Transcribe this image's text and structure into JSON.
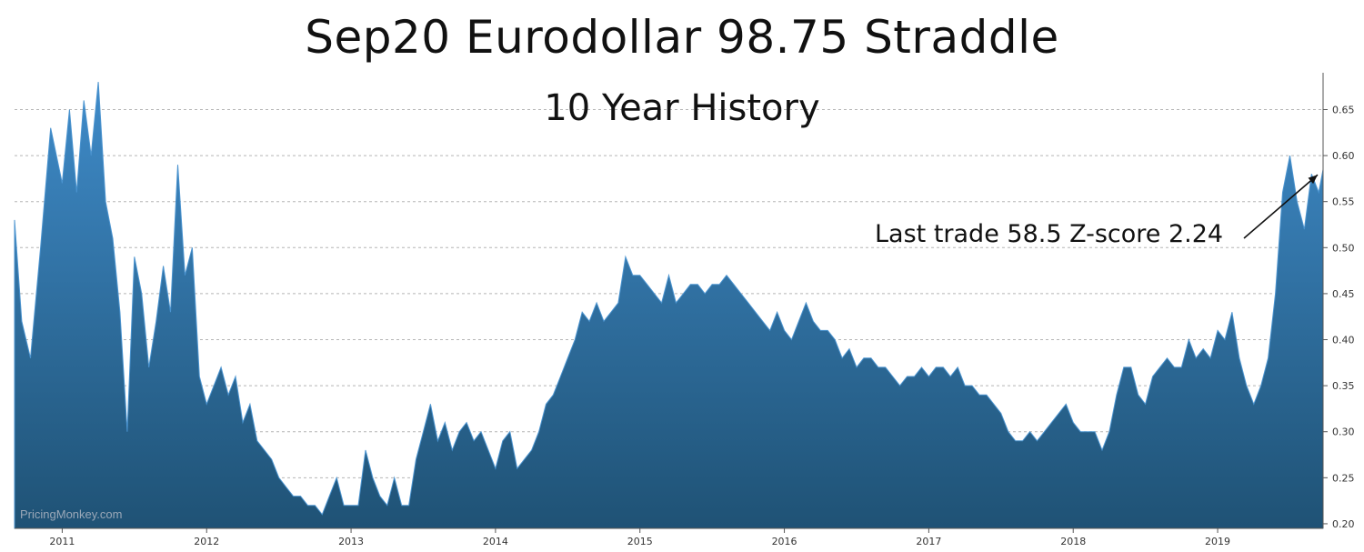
{
  "chart_data": {
    "type": "area",
    "title": "Sep20 Eurodollar 98.75 Straddle",
    "subtitle": "10 Year History",
    "annotation": "Last trade 58.5 Z-score 2.24",
    "watermark": "PricingMonkey.com",
    "x_ticks": [
      "2011",
      "2012",
      "2013",
      "2014",
      "2015",
      "2016",
      "2017",
      "2018",
      "2019"
    ],
    "y_ticks": [
      "0.20",
      "0.25",
      "0.30",
      "0.35",
      "0.40",
      "0.45",
      "0.50",
      "0.55",
      "0.60",
      "0.65"
    ],
    "ylim": [
      0.195,
      0.69
    ],
    "xlim": [
      2010.67,
      2019.73
    ],
    "grid": true,
    "colors": {
      "fill_top": "#3f8bc9",
      "fill_bottom": "#1f5275",
      "grid": "#b5b5b5"
    },
    "x": [
      2010.67,
      2010.72,
      2010.78,
      2010.85,
      2010.92,
      2011.0,
      2011.05,
      2011.1,
      2011.15,
      2011.2,
      2011.25,
      2011.3,
      2011.35,
      2011.4,
      2011.45,
      2011.5,
      2011.55,
      2011.6,
      2011.65,
      2011.7,
      2011.75,
      2011.8,
      2011.85,
      2011.9,
      2011.95,
      2012.0,
      2012.05,
      2012.1,
      2012.15,
      2012.2,
      2012.25,
      2012.3,
      2012.35,
      2012.4,
      2012.45,
      2012.5,
      2012.55,
      2012.6,
      2012.65,
      2012.7,
      2012.75,
      2012.8,
      2012.85,
      2012.9,
      2012.95,
      2013.0,
      2013.05,
      2013.1,
      2013.15,
      2013.2,
      2013.25,
      2013.3,
      2013.35,
      2013.4,
      2013.45,
      2013.5,
      2013.55,
      2013.6,
      2013.65,
      2013.7,
      2013.75,
      2013.8,
      2013.85,
      2013.9,
      2013.95,
      2014.0,
      2014.05,
      2014.1,
      2014.15,
      2014.2,
      2014.25,
      2014.3,
      2014.35,
      2014.4,
      2014.45,
      2014.5,
      2014.55,
      2014.6,
      2014.65,
      2014.7,
      2014.75,
      2014.8,
      2014.85,
      2014.9,
      2014.95,
      2015.0,
      2015.05,
      2015.1,
      2015.15,
      2015.2,
      2015.25,
      2015.3,
      2015.35,
      2015.4,
      2015.45,
      2015.5,
      2015.55,
      2015.6,
      2015.65,
      2015.7,
      2015.75,
      2015.8,
      2015.85,
      2015.9,
      2015.95,
      2016.0,
      2016.05,
      2016.1,
      2016.15,
      2016.2,
      2016.25,
      2016.3,
      2016.35,
      2016.4,
      2016.45,
      2016.5,
      2016.55,
      2016.6,
      2016.65,
      2016.7,
      2016.75,
      2016.8,
      2016.85,
      2016.9,
      2016.95,
      2017.0,
      2017.05,
      2017.1,
      2017.15,
      2017.2,
      2017.25,
      2017.3,
      2017.35,
      2017.4,
      2017.45,
      2017.5,
      2017.55,
      2017.6,
      2017.65,
      2017.7,
      2017.75,
      2017.8,
      2017.85,
      2017.9,
      2017.95,
      2018.0,
      2018.05,
      2018.1,
      2018.15,
      2018.2,
      2018.25,
      2018.3,
      2018.35,
      2018.4,
      2018.45,
      2018.5,
      2018.55,
      2018.6,
      2018.65,
      2018.7,
      2018.75,
      2018.8,
      2018.85,
      2018.9,
      2018.95,
      2019.0,
      2019.05,
      2019.1,
      2019.15,
      2019.2,
      2019.25,
      2019.3,
      2019.35,
      2019.4,
      2019.45,
      2019.5,
      2019.55,
      2019.6,
      2019.65,
      2019.7,
      2019.73
    ],
    "y": [
      0.53,
      0.42,
      0.38,
      0.5,
      0.63,
      0.57,
      0.65,
      0.56,
      0.66,
      0.6,
      0.68,
      0.55,
      0.51,
      0.43,
      0.3,
      0.49,
      0.45,
      0.37,
      0.42,
      0.48,
      0.43,
      0.59,
      0.47,
      0.5,
      0.36,
      0.33,
      0.35,
      0.37,
      0.34,
      0.36,
      0.31,
      0.33,
      0.29,
      0.28,
      0.27,
      0.25,
      0.24,
      0.23,
      0.23,
      0.22,
      0.22,
      0.21,
      0.23,
      0.25,
      0.22,
      0.22,
      0.22,
      0.28,
      0.25,
      0.23,
      0.22,
      0.25,
      0.22,
      0.22,
      0.27,
      0.3,
      0.33,
      0.29,
      0.31,
      0.28,
      0.3,
      0.31,
      0.29,
      0.3,
      0.28,
      0.26,
      0.29,
      0.3,
      0.26,
      0.27,
      0.28,
      0.3,
      0.33,
      0.34,
      0.36,
      0.38,
      0.4,
      0.43,
      0.42,
      0.44,
      0.42,
      0.43,
      0.44,
      0.49,
      0.47,
      0.47,
      0.46,
      0.45,
      0.44,
      0.47,
      0.44,
      0.45,
      0.46,
      0.46,
      0.45,
      0.46,
      0.46,
      0.47,
      0.46,
      0.45,
      0.44,
      0.43,
      0.42,
      0.41,
      0.43,
      0.41,
      0.4,
      0.42,
      0.44,
      0.42,
      0.41,
      0.41,
      0.4,
      0.38,
      0.39,
      0.37,
      0.38,
      0.38,
      0.37,
      0.37,
      0.36,
      0.35,
      0.36,
      0.36,
      0.37,
      0.36,
      0.37,
      0.37,
      0.36,
      0.37,
      0.35,
      0.35,
      0.34,
      0.34,
      0.33,
      0.32,
      0.3,
      0.29,
      0.29,
      0.3,
      0.29,
      0.3,
      0.31,
      0.32,
      0.33,
      0.31,
      0.3,
      0.3,
      0.3,
      0.28,
      0.3,
      0.34,
      0.37,
      0.37,
      0.34,
      0.33,
      0.36,
      0.37,
      0.38,
      0.37,
      0.37,
      0.4,
      0.38,
      0.39,
      0.38,
      0.41,
      0.4,
      0.43,
      0.38,
      0.35,
      0.33,
      0.35,
      0.38,
      0.45,
      0.56,
      0.6,
      0.55,
      0.52,
      0.58,
      0.56,
      0.585
    ]
  }
}
